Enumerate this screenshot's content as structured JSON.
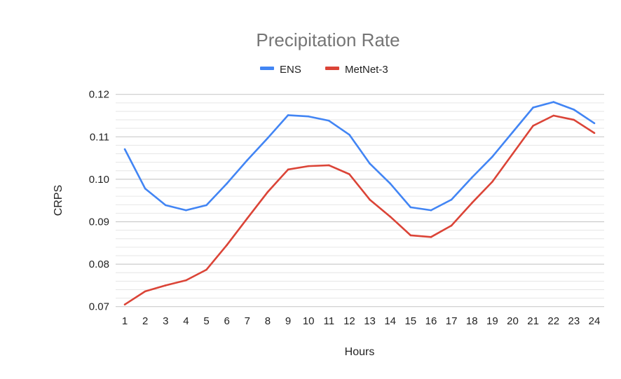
{
  "chart_data": {
    "type": "line",
    "title": "Precipitation Rate",
    "xlabel": "Hours",
    "ylabel": "CRPS",
    "x": [
      1,
      2,
      3,
      4,
      5,
      6,
      7,
      8,
      9,
      10,
      11,
      12,
      13,
      14,
      15,
      16,
      17,
      18,
      19,
      20,
      21,
      22,
      23,
      24
    ],
    "ylim": [
      0.07,
      0.12
    ],
    "yticks": [
      "0.07",
      "0.08",
      "0.09",
      "0.10",
      "0.11",
      "0.12"
    ],
    "grid": true,
    "legend_position": "top",
    "series": [
      {
        "name": "ENS",
        "color": "#4285F4",
        "values": [
          0.1071,
          0.0978,
          0.0939,
          0.0927,
          0.0939,
          0.099,
          0.1045,
          0.1097,
          0.1151,
          0.1148,
          0.1138,
          0.1105,
          0.1037,
          0.099,
          0.0934,
          0.0927,
          0.0952,
          0.1004,
          0.1053,
          0.1111,
          0.1169,
          0.1182,
          0.1164,
          0.1132
        ]
      },
      {
        "name": "MetNet-3",
        "color": "#DB4437",
        "values": [
          0.0705,
          0.0736,
          0.075,
          0.0762,
          0.0787,
          0.0845,
          0.0908,
          0.097,
          0.1023,
          0.1031,
          0.1033,
          0.1012,
          0.0952,
          0.0912,
          0.0868,
          0.0864,
          0.0891,
          0.0944,
          0.0994,
          0.106,
          0.1126,
          0.115,
          0.114,
          0.1109
        ]
      }
    ]
  }
}
